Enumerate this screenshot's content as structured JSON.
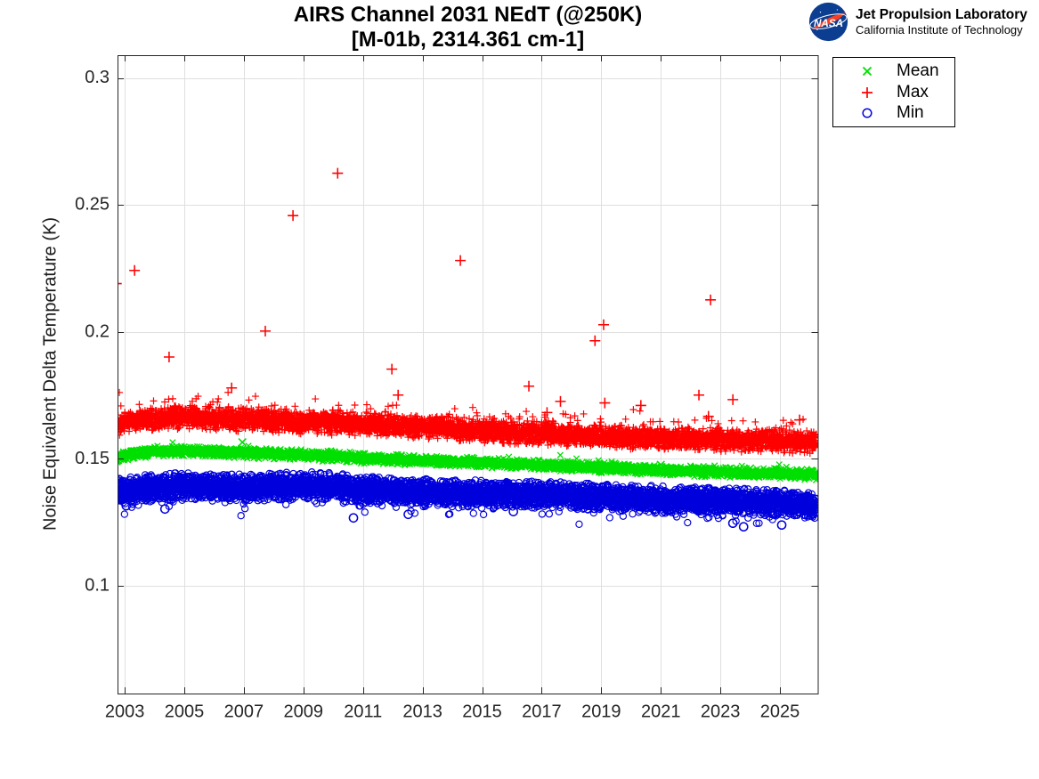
{
  "header": {
    "logo": "nasa-meatball",
    "org": "Jet Propulsion Laboratory",
    "org_sub": "California Institute of Technology"
  },
  "title": {
    "line1": "AIRS Channel 2031 NEdT (@250K)",
    "line2": "[M-01b, 2314.361 cm-1]"
  },
  "chart_data": {
    "type": "scatter",
    "title": "AIRS Channel 2031 NEdT (@250K)",
    "subtitle": "[M-01b, 2314.361 cm-1]",
    "xlabel": "",
    "ylabel": "Noise Equivalent Delta Temperature (K)",
    "xlim": [
      2002.758,
      2026.27
    ],
    "ylim": [
      0.0575,
      0.309
    ],
    "x_ticks": [
      2003,
      2005,
      2007,
      2009,
      2011,
      2013,
      2015,
      2017,
      2019,
      2021,
      2023,
      2025
    ],
    "y_ticks": [
      0.1,
      0.15,
      0.2,
      0.25,
      0.3
    ],
    "y_tick_labels": [
      "0.1",
      "0.15",
      "0.2",
      "0.25",
      "0.3"
    ],
    "grid": true,
    "axis_color": "#262626",
    "grid_color": "rgba(38,38,38,0.15)",
    "background": "#ffffff",
    "x_data_range": [
      2002.72,
      2026.22
    ],
    "legend": {
      "position": "outside-top-right",
      "entries": [
        {
          "label": "Mean",
          "marker": "x",
          "color": "#00E000"
        },
        {
          "label": "Max",
          "marker": "+",
          "color": "#FF0000"
        },
        {
          "label": "Min",
          "marker": "o",
          "color": "#0000DD"
        }
      ]
    },
    "series": [
      {
        "name": "Mean",
        "marker": "x",
        "color": "#00E000",
        "seed": 11,
        "points_per_year": 150,
        "sigma": 0.0009,
        "clip": 0.0022,
        "tail": {
          "prob": 0.012,
          "max": 0.0022,
          "dir": 1
        },
        "marker_size": 3.2,
        "line_width": 1.3,
        "outlier_size": 4.2,
        "trend": [
          [
            2002.72,
            0.15
          ],
          [
            2003.2,
            0.1518
          ],
          [
            2004.0,
            0.1527
          ],
          [
            2005.0,
            0.153
          ],
          [
            2006.0,
            0.1527
          ],
          [
            2007.0,
            0.1523
          ],
          [
            2008.0,
            0.1519
          ],
          [
            2009.0,
            0.1514
          ],
          [
            2010.0,
            0.1509
          ],
          [
            2011.0,
            0.1503
          ],
          [
            2012.0,
            0.1498
          ],
          [
            2013.0,
            0.1493
          ],
          [
            2014.0,
            0.1489
          ],
          [
            2015.0,
            0.1485
          ],
          [
            2016.0,
            0.148
          ],
          [
            2017.0,
            0.1475
          ],
          [
            2018.0,
            0.147
          ],
          [
            2019.0,
            0.1465
          ],
          [
            2020.0,
            0.146
          ],
          [
            2021.0,
            0.1455
          ],
          [
            2022.0,
            0.1451
          ],
          [
            2023.0,
            0.1447
          ],
          [
            2024.0,
            0.1443
          ],
          [
            2025.0,
            0.144
          ],
          [
            2026.22,
            0.1437
          ]
        ],
        "outliers": [
          [
            2006.95,
            0.1565
          ],
          [
            2014.65,
            0.1503
          ],
          [
            2021.0,
            0.1476
          ],
          [
            2024.0,
            0.1462
          ]
        ]
      },
      {
        "name": "Max",
        "marker": "+",
        "color": "#FF0000",
        "seed": 7,
        "points_per_year": 210,
        "sigma": 0.0021,
        "clip": 0.0048,
        "tail": {
          "prob": 0.035,
          "max": 0.0075,
          "dir": 1
        },
        "marker_size": 4.0,
        "line_width": 1.2,
        "outlier_size": 6.0,
        "trend": [
          [
            2002.72,
            0.1635
          ],
          [
            2003.3,
            0.1652
          ],
          [
            2004.0,
            0.166
          ],
          [
            2005.0,
            0.1663
          ],
          [
            2006.0,
            0.166
          ],
          [
            2007.0,
            0.1654
          ],
          [
            2008.0,
            0.165
          ],
          [
            2009.0,
            0.1645
          ],
          [
            2010.0,
            0.1641
          ],
          [
            2011.0,
            0.1637
          ],
          [
            2012.0,
            0.1633
          ],
          [
            2013.0,
            0.1627
          ],
          [
            2014.0,
            0.1619
          ],
          [
            2015.0,
            0.1611
          ],
          [
            2016.0,
            0.1605
          ],
          [
            2017.0,
            0.16
          ],
          [
            2018.0,
            0.1594
          ],
          [
            2019.0,
            0.1589
          ],
          [
            2020.0,
            0.1585
          ],
          [
            2021.0,
            0.1581
          ],
          [
            2022.0,
            0.1577
          ],
          [
            2023.0,
            0.1574
          ],
          [
            2024.0,
            0.1572
          ],
          [
            2025.0,
            0.157
          ],
          [
            2026.22,
            0.1568
          ]
        ],
        "outliers": [
          [
            2002.72,
            0.219
          ],
          [
            2003.33,
            0.2242
          ],
          [
            2004.49,
            0.1901
          ],
          [
            2006.59,
            0.1779
          ],
          [
            2007.72,
            0.2003
          ],
          [
            2008.65,
            0.2458
          ],
          [
            2010.15,
            0.2625
          ],
          [
            2011.97,
            0.1853
          ],
          [
            2012.18,
            0.1751
          ],
          [
            2014.27,
            0.2281
          ],
          [
            2016.57,
            0.1786
          ],
          [
            2017.18,
            0.1682
          ],
          [
            2017.63,
            0.1726
          ],
          [
            2018.79,
            0.1965
          ],
          [
            2019.08,
            0.2028
          ],
          [
            2019.12,
            0.172
          ],
          [
            2020.33,
            0.171
          ],
          [
            2022.28,
            0.1751
          ],
          [
            2022.6,
            0.1667
          ],
          [
            2022.67,
            0.2126
          ],
          [
            2023.42,
            0.1733
          ],
          [
            2025.66,
            0.1653
          ]
        ]
      },
      {
        "name": "Min",
        "marker": "o",
        "color": "#0000DD",
        "seed": 23,
        "points_per_year": 230,
        "sigma": 0.0026,
        "clip": 0.0055,
        "tail": {
          "prob": 0.02,
          "max": 0.0045,
          "dir": -1
        },
        "marker_size": 3.6,
        "line_width": 1.15,
        "outlier_size": 4.6,
        "trend": [
          [
            2002.72,
            0.138
          ],
          [
            2003.1,
            0.1372
          ],
          [
            2003.6,
            0.1383
          ],
          [
            2004.5,
            0.139
          ],
          [
            2005.5,
            0.1388
          ],
          [
            2006.5,
            0.1384
          ],
          [
            2007.5,
            0.1388
          ],
          [
            2008.5,
            0.1392
          ],
          [
            2009.5,
            0.1393
          ],
          [
            2010.3,
            0.1386
          ],
          [
            2011.0,
            0.1379
          ],
          [
            2012.0,
            0.1372
          ],
          [
            2013.0,
            0.1368
          ],
          [
            2014.0,
            0.1364
          ],
          [
            2015.0,
            0.1362
          ],
          [
            2016.0,
            0.1359
          ],
          [
            2017.0,
            0.1356
          ],
          [
            2018.0,
            0.1352
          ],
          [
            2019.0,
            0.1348
          ],
          [
            2020.0,
            0.1343
          ],
          [
            2021.0,
            0.1338
          ],
          [
            2022.0,
            0.1334
          ],
          [
            2023.0,
            0.1331
          ],
          [
            2024.0,
            0.1328
          ],
          [
            2025.0,
            0.1323
          ],
          [
            2026.22,
            0.132
          ]
        ],
        "outliers": [
          [
            2003.05,
            0.1315
          ],
          [
            2004.35,
            0.1302
          ],
          [
            2010.68,
            0.1267
          ],
          [
            2012.52,
            0.1281
          ],
          [
            2016.05,
            0.1292
          ],
          [
            2023.42,
            0.1246
          ],
          [
            2023.78,
            0.1232
          ],
          [
            2025.06,
            0.1239
          ]
        ]
      }
    ]
  }
}
